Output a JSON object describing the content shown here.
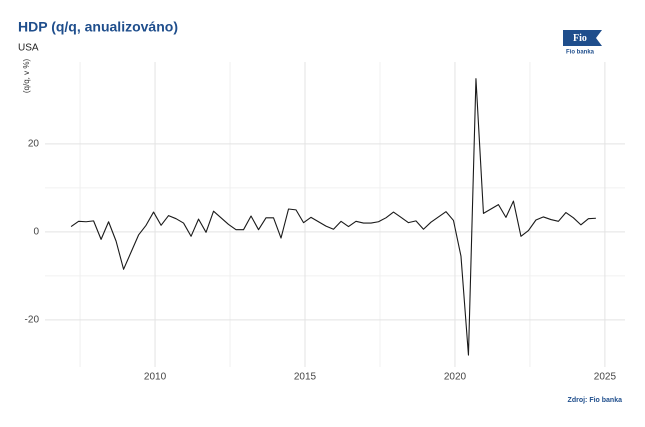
{
  "chart_data": {
    "type": "line",
    "title": "HDP (q/q, anualizováno)",
    "subtitle": "USA",
    "y_label": "(q/q, v %)",
    "source": "Zdroj: Fio banka",
    "logo": "Fio",
    "logo_caption": "Fio banka",
    "x": [
      2007.2,
      2007.45,
      2007.7,
      2007.95,
      2008.2,
      2008.45,
      2008.7,
      2008.95,
      2009.2,
      2009.45,
      2009.7,
      2009.95,
      2010.2,
      2010.45,
      2010.7,
      2010.95,
      2011.2,
      2011.45,
      2011.7,
      2011.95,
      2012.2,
      2012.45,
      2012.7,
      2012.95,
      2013.2,
      2013.45,
      2013.7,
      2013.95,
      2014.2,
      2014.45,
      2014.7,
      2014.95,
      2015.2,
      2015.45,
      2015.7,
      2015.95,
      2016.2,
      2016.45,
      2016.7,
      2016.95,
      2017.2,
      2017.45,
      2017.7,
      2017.95,
      2018.2,
      2018.45,
      2018.7,
      2018.95,
      2019.2,
      2019.45,
      2019.7,
      2019.95,
      2020.2,
      2020.45,
      2020.7,
      2020.95,
      2021.2,
      2021.45,
      2021.7,
      2021.95,
      2022.2,
      2022.45,
      2022.7,
      2022.95,
      2023.2,
      2023.45,
      2023.7,
      2023.95,
      2024.2,
      2024.45,
      2024.7
    ],
    "series": [
      {
        "name": "HDP",
        "color": "#1a1a1a",
        "values": [
          1.2,
          2.4,
          2.3,
          2.5,
          -1.7,
          2.3,
          -2.1,
          -8.5,
          -4.6,
          -0.7,
          1.5,
          4.5,
          1.5,
          3.7,
          3.0,
          2.0,
          -1.0,
          2.9,
          -0.1,
          4.7,
          3.2,
          1.7,
          0.5,
          0.5,
          3.6,
          0.5,
          3.2,
          3.2,
          -1.4,
          5.2,
          5.0,
          2.1,
          3.3,
          2.3,
          1.3,
          0.6,
          2.4,
          1.2,
          2.4,
          2.0,
          2.0,
          2.3,
          3.2,
          4.5,
          3.3,
          2.1,
          2.5,
          0.6,
          2.2,
          3.4,
          4.6,
          2.6,
          -5.5,
          -28.0,
          34.8,
          4.2,
          5.2,
          6.2,
          3.3,
          7.0,
          -1.0,
          0.3,
          2.7,
          3.4,
          2.8,
          2.4,
          4.4,
          3.2,
          1.6,
          3.0,
          3.1
        ]
      }
    ],
    "xlim": [
      2006.33,
      2025.67
    ],
    "xticks": [
      2010,
      2015,
      2020,
      2025
    ],
    "ylim": [
      -30.7,
      38.6
    ],
    "yticks": [
      -20,
      0,
      20
    ],
    "grid": true
  }
}
